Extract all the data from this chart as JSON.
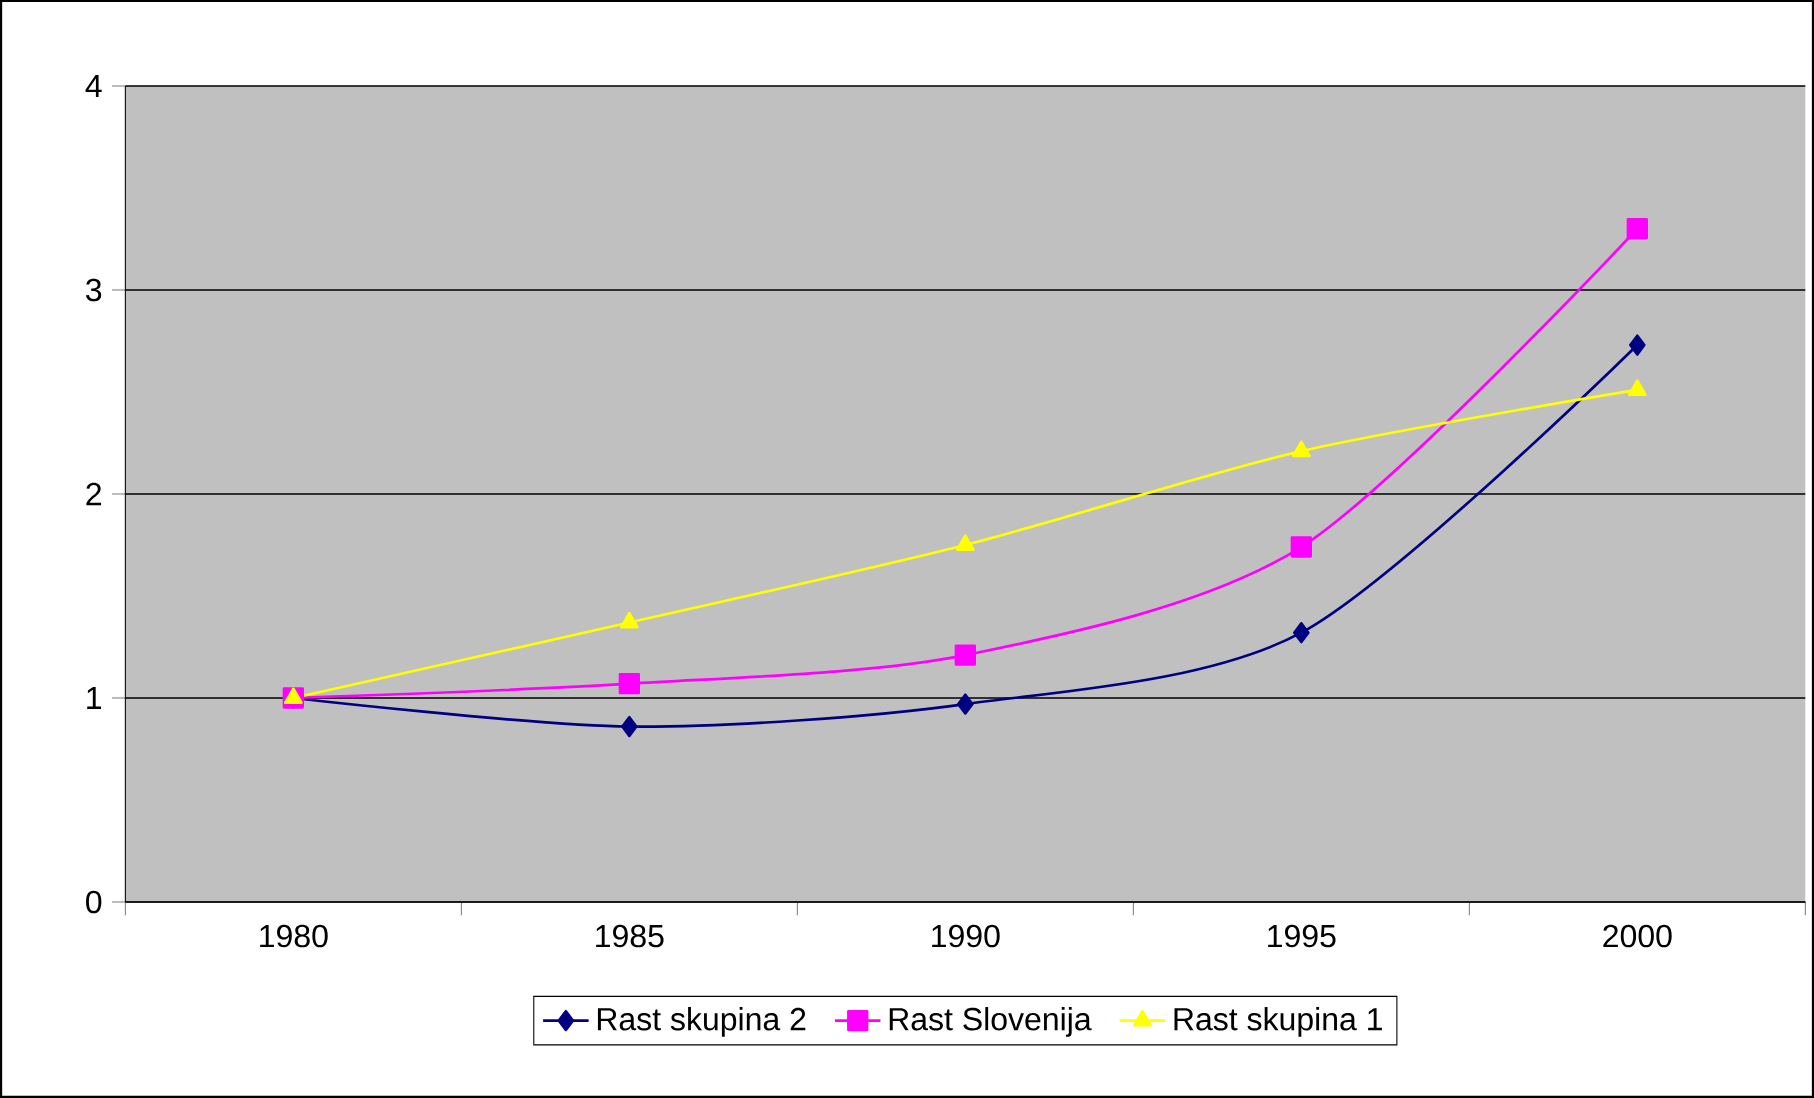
{
  "chart_data": {
    "type": "line",
    "categories": [
      "1980",
      "1985",
      "1990",
      "1995",
      "2000"
    ],
    "series": [
      {
        "name": "Rast skupina 2",
        "color": "#000080",
        "marker": "diamond",
        "values": [
          1.0,
          0.86,
          0.97,
          1.32,
          2.73
        ]
      },
      {
        "name": "Rast Slovenija",
        "color": "#ff00ff",
        "marker": "square",
        "values": [
          1.0,
          1.07,
          1.21,
          1.74,
          3.3
        ]
      },
      {
        "name": "Rast skupina 1",
        "color": "#ffff00",
        "marker": "triangle",
        "values": [
          1.0,
          1.37,
          1.75,
          2.21,
          2.51
        ]
      }
    ],
    "ylim": [
      0,
      4
    ],
    "yticks": [
      0,
      1,
      2,
      3,
      4
    ],
    "grid": "y",
    "legend": "bottom"
  }
}
